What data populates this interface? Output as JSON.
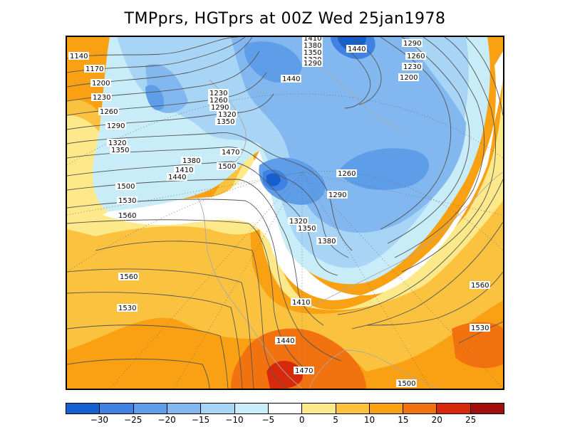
{
  "title": "TMPprs, HGTprs at 00Z Wed 25jan1978",
  "colors": {
    "c_m30": "#1560d0",
    "c_m25": "#3f82e2",
    "c_m20": "#5e9ee9",
    "c_m15": "#82b8ef",
    "c_m10": "#a8d4f5",
    "c_m5": "#c8ecf8",
    "c_0": "#ffffff",
    "c_5": "#fde98a",
    "c_10": "#fbc240",
    "c_15": "#f9a112",
    "c_20": "#f37210",
    "c_25": "#d72a0c",
    "c_30": "#a10e0e",
    "contour": "#555555",
    "coast": "#a9a9a9"
  },
  "colorbar": {
    "colors": [
      "#1560d0",
      "#3f82e2",
      "#5e9ee9",
      "#82b8ef",
      "#a8d4f5",
      "#c8ecf8",
      "#ffffff",
      "#fde98a",
      "#fbc240",
      "#f9a112",
      "#f37210",
      "#d72a0c",
      "#a10e0e"
    ],
    "ticks": [
      "-30",
      "-25",
      "-20",
      "-15",
      "-10",
      "-5",
      "0",
      "5",
      "10",
      "15",
      "20",
      "25"
    ]
  },
  "contour_labels": [
    {
      "text": "1140"
    },
    {
      "text": "1170"
    },
    {
      "text": "1200"
    },
    {
      "text": "1230"
    },
    {
      "text": "1260"
    },
    {
      "text": "1290"
    },
    {
      "text": "1320"
    },
    {
      "text": "1350"
    },
    {
      "text": "1380"
    },
    {
      "text": "1410"
    },
    {
      "text": "1440"
    },
    {
      "text": "1500"
    },
    {
      "text": "1530"
    },
    {
      "text": "1560"
    },
    {
      "text": "1230"
    },
    {
      "text": "1260"
    },
    {
      "text": "1290"
    },
    {
      "text": "1320"
    },
    {
      "text": "1350"
    },
    {
      "text": "1470"
    },
    {
      "text": "1500"
    },
    {
      "text": "1440"
    },
    {
      "text": "1410"
    },
    {
      "text": "1380"
    },
    {
      "text": "1350"
    },
    {
      "text": "1320"
    },
    {
      "text": "1290"
    },
    {
      "text": "1440"
    },
    {
      "text": "1290"
    },
    {
      "text": "1260"
    },
    {
      "text": "1230"
    },
    {
      "text": "1200"
    },
    {
      "text": "1260"
    },
    {
      "text": "1290"
    },
    {
      "text": "1320"
    },
    {
      "text": "1350"
    },
    {
      "text": "1380"
    },
    {
      "text": "1560"
    },
    {
      "text": "1530"
    },
    {
      "text": "1530"
    },
    {
      "text": "1410"
    },
    {
      "text": "1440"
    },
    {
      "text": "1470"
    },
    {
      "text": "1500"
    },
    {
      "text": "1560"
    }
  ]
}
